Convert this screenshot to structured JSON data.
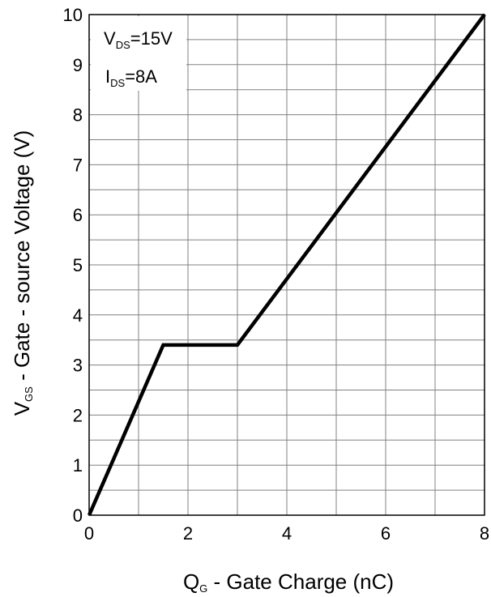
{
  "chart_data": {
    "type": "line",
    "xlabel": {
      "main": "Q",
      "sub": "G",
      "rest": " - Gate Charge (nC)"
    },
    "ylabel": {
      "main": "V",
      "sub": "GS",
      "rest": " - Gate - source Voltage (V)"
    },
    "xlim": [
      0,
      8
    ],
    "ylim": [
      0,
      10
    ],
    "x_ticks": [
      0,
      2,
      4,
      6,
      8
    ],
    "x_minor_step": 1,
    "y_ticks": [
      0,
      1,
      2,
      3,
      4,
      5,
      6,
      7,
      8,
      9,
      10
    ],
    "y_minor_step": 0.5,
    "grid": true,
    "series": [
      {
        "x": [
          0,
          1.5,
          3.0,
          8.0
        ],
        "y": [
          0,
          3.4,
          3.4,
          10.0
        ]
      }
    ],
    "annotations": [
      {
        "main": "V",
        "sub": "DS",
        "rest": "=15V"
      },
      {
        "main": "I",
        "sub": "DS",
        "rest": "=8A"
      }
    ],
    "colors": {
      "line": "#000000",
      "grid": "#808080",
      "frame": "#000000"
    }
  }
}
